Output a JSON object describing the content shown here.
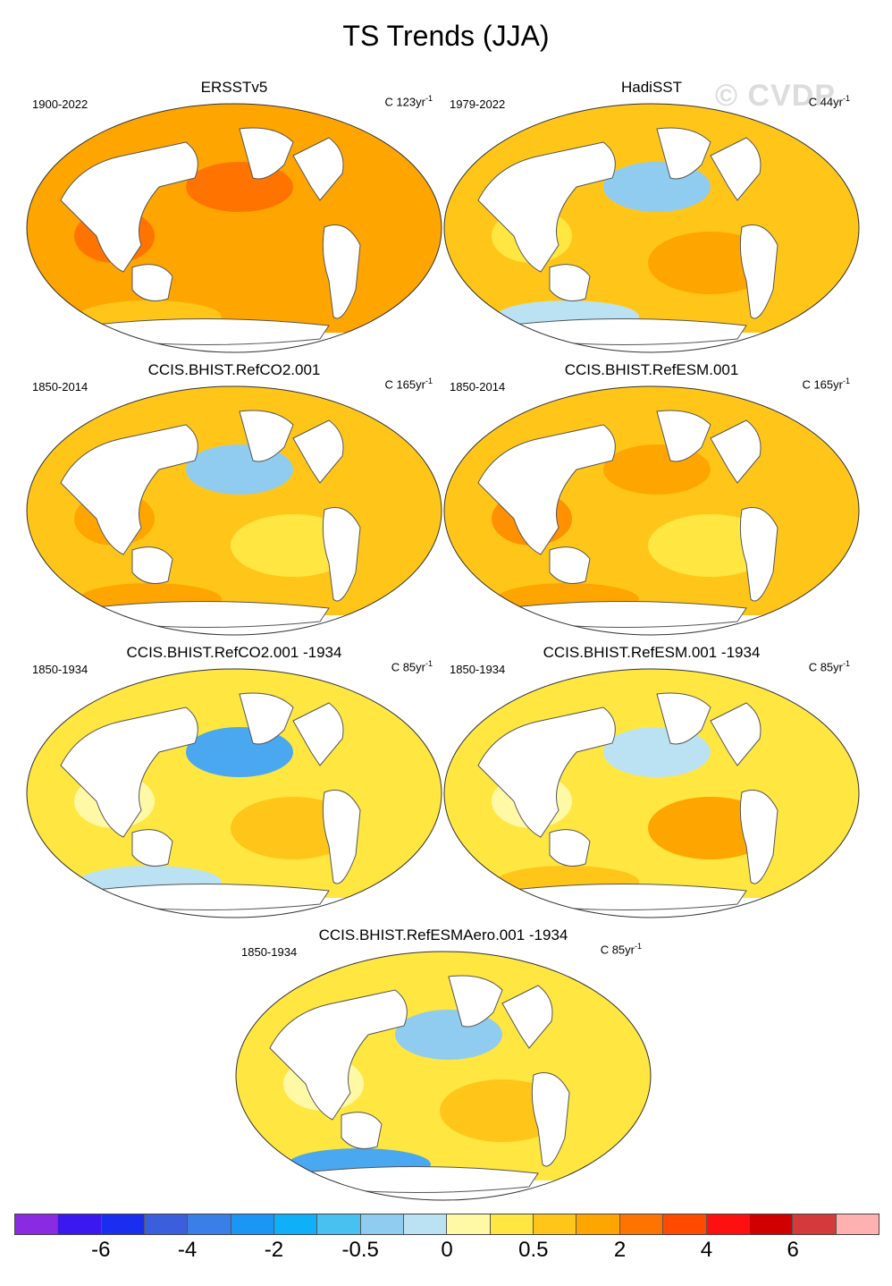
{
  "title": "TS Trends (JJA)",
  "watermark": "© CVDP",
  "panels": [
    {
      "title": "ERSSTv5",
      "period": "1900-2022",
      "units": "C 123yr",
      "exp": "-1",
      "fill": "#ffa500",
      "blobs": [
        {
          "c": "#ff7400"
        },
        {
          "c": "#ffc619"
        },
        {
          "c": "#ffa500"
        },
        {
          "c": "#ff7400"
        }
      ]
    },
    {
      "title": "HadiSST",
      "period": "1979-2022",
      "units": "C 44yr",
      "exp": "-1",
      "fill": "#ffc619",
      "blobs": [
        {
          "c": "#8fccef"
        },
        {
          "c": "#bae2f3"
        },
        {
          "c": "#ffa500"
        },
        {
          "c": "#ffe640"
        }
      ]
    },
    {
      "title": "CCIS.BHIST.RefCO2.001",
      "period": "1850-2014",
      "units": "C 165yr",
      "exp": "-1",
      "fill": "#ffc619",
      "blobs": [
        {
          "c": "#8fccef"
        },
        {
          "c": "#ffa500"
        },
        {
          "c": "#ffe640"
        },
        {
          "c": "#ffa500"
        }
      ]
    },
    {
      "title": "CCIS.BHIST.RefESM.001",
      "period": "1850-2014",
      "units": "C 165yr",
      "exp": "-1",
      "fill": "#ffc619",
      "blobs": [
        {
          "c": "#ffa500"
        },
        {
          "c": "#ffa500"
        },
        {
          "c": "#ffe640"
        },
        {
          "c": "#ff9000"
        }
      ]
    },
    {
      "title": "CCIS.BHIST.RefCO2.001 -1934",
      "period": "1850-1934",
      "units": "C 85yr",
      "exp": "-1",
      "fill": "#ffe640",
      "blobs": [
        {
          "c": "#4aa8f0"
        },
        {
          "c": "#bae2f3"
        },
        {
          "c": "#ffc619"
        },
        {
          "c": "#fff9a6"
        }
      ]
    },
    {
      "title": "CCIS.BHIST.RefESM.001 -1934",
      "period": "1850-1934",
      "units": "C 85yr",
      "exp": "-1",
      "fill": "#ffe640",
      "blobs": [
        {
          "c": "#bae2f3"
        },
        {
          "c": "#ffc619"
        },
        {
          "c": "#ffa500"
        },
        {
          "c": "#fff9a6"
        }
      ]
    },
    {
      "title": "CCIS.BHIST.RefESMAero.001 -1934",
      "period": "1850-1934",
      "units": "C 85yr",
      "exp": "-1",
      "fill": "#ffe640",
      "blobs": [
        {
          "c": "#8fccef"
        },
        {
          "c": "#4aa8f0"
        },
        {
          "c": "#ffc619"
        },
        {
          "c": "#fff9a6"
        }
      ]
    }
  ],
  "colorbar": {
    "colors": [
      "#8a2be2",
      "#3b18f0",
      "#1a2ef0",
      "#3b5fdc",
      "#3a7ee8",
      "#1c96f5",
      "#10b0f8",
      "#48c0f0",
      "#8fccef",
      "#bae2f3",
      "#fff9a6",
      "#ffe640",
      "#ffc619",
      "#ffa500",
      "#ff7400",
      "#ff4a00",
      "#ff1010",
      "#d00000",
      "#d43a3a",
      "#ffb0b0"
    ],
    "labels": [
      "-6",
      "-4",
      "-2",
      "-0.5",
      "0",
      "0.5",
      "2",
      "4",
      "6"
    ]
  }
}
